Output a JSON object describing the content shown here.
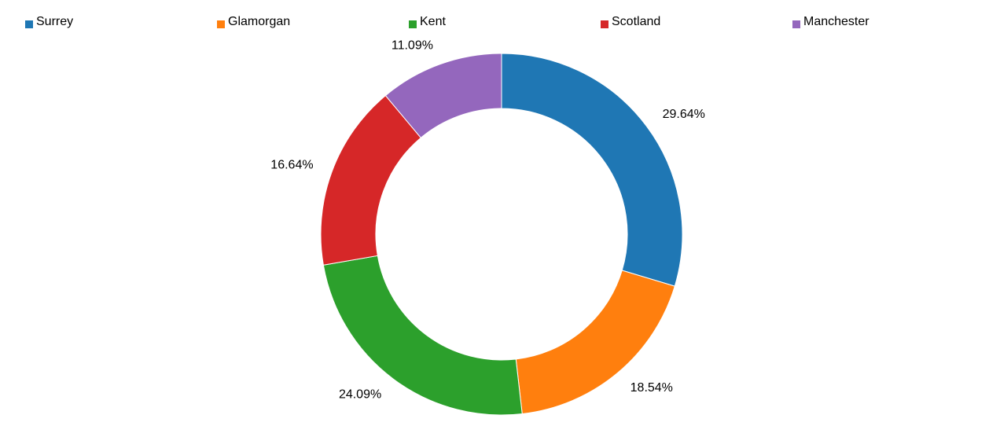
{
  "chart_data": {
    "type": "pie",
    "donut": true,
    "legend_position": "top",
    "categories": [
      "Surrey",
      "Glamorgan",
      "Kent",
      "Scotland",
      "Manchester"
    ],
    "values": [
      29.64,
      18.54,
      24.09,
      16.64,
      11.09
    ],
    "labels": [
      "29.64%",
      "18.54%",
      "24.09%",
      "16.64%",
      "11.09%"
    ],
    "colors": [
      "#1f77b4",
      "#ff7f0e",
      "#2ca02c",
      "#d62728",
      "#9467bd"
    ]
  }
}
